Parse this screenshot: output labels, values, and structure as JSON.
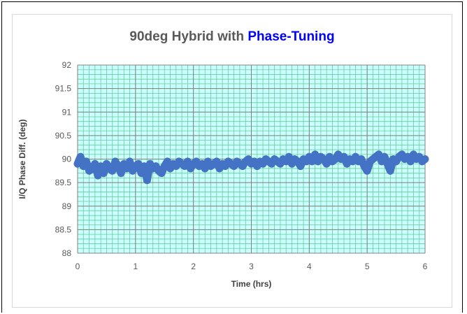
{
  "chart_data": {
    "type": "scatter",
    "title": "90deg Hybrid with ",
    "title_highlight": "Phase-Tuning",
    "xlabel": "Time (hrs)",
    "ylabel": "I/Q Phase Diff. (deg)",
    "xlim": [
      0,
      6
    ],
    "ylim": [
      88,
      92
    ],
    "x_ticks": [
      "0",
      "1",
      "2",
      "3",
      "4",
      "5",
      "6"
    ],
    "y_ticks": [
      "88",
      "88.5",
      "89",
      "89.5",
      "90",
      "90.5",
      "91",
      "91.5",
      "92"
    ],
    "grid": true,
    "legend": "none",
    "colors": {
      "plot_background": "#ccffff",
      "major_grid": "#808080",
      "minor_grid": "#66cc99",
      "series": "#4472c4",
      "title_accent": "#0000ff"
    },
    "series": [
      {
        "x": [
          0.0,
          0.05,
          0.1,
          0.15,
          0.2,
          0.25,
          0.3,
          0.35,
          0.4,
          0.45,
          0.5,
          0.55,
          0.6,
          0.65,
          0.7,
          0.75,
          0.8,
          0.85,
          0.9,
          0.95,
          1.0,
          1.05,
          1.1,
          1.15,
          1.2,
          1.25,
          1.3,
          1.35,
          1.4,
          1.45,
          1.5,
          1.55,
          1.6,
          1.65,
          1.7,
          1.75,
          1.8,
          1.85,
          1.9,
          1.95,
          2.0,
          2.05,
          2.1,
          2.15,
          2.2,
          2.25,
          2.3,
          2.35,
          2.4,
          2.45,
          2.5,
          2.55,
          2.6,
          2.65,
          2.7,
          2.75,
          2.8,
          2.85,
          2.9,
          2.95,
          3.0,
          3.05,
          3.1,
          3.15,
          3.2,
          3.25,
          3.3,
          3.35,
          3.4,
          3.45,
          3.5,
          3.55,
          3.6,
          3.65,
          3.7,
          3.75,
          3.8,
          3.85,
          3.9,
          3.95,
          4.0,
          4.05,
          4.1,
          4.15,
          4.2,
          4.25,
          4.3,
          4.35,
          4.4,
          4.45,
          4.5,
          4.55,
          4.6,
          4.65,
          4.7,
          4.75,
          4.8,
          4.85,
          4.9,
          4.95,
          5.0,
          5.05,
          5.1,
          5.15,
          5.2,
          5.25,
          5.3,
          5.35,
          5.4,
          5.45,
          5.5,
          5.55,
          5.6,
          5.65,
          5.7,
          5.75,
          5.8,
          5.85,
          5.9,
          5.95,
          6.0
        ],
        "y": [
          89.9,
          90.05,
          89.85,
          89.95,
          89.75,
          89.8,
          89.9,
          89.65,
          89.85,
          89.7,
          89.9,
          89.8,
          89.75,
          89.95,
          89.85,
          89.7,
          89.9,
          89.8,
          89.95,
          89.75,
          89.85,
          89.9,
          89.7,
          89.85,
          89.55,
          89.9,
          89.8,
          89.85,
          89.75,
          89.7,
          89.85,
          89.95,
          89.8,
          89.9,
          89.85,
          89.95,
          89.9,
          89.85,
          89.95,
          89.8,
          89.9,
          89.95,
          89.85,
          89.9,
          89.8,
          89.95,
          89.85,
          89.9,
          89.95,
          89.8,
          89.9,
          89.85,
          89.95,
          89.9,
          89.85,
          89.95,
          89.9,
          89.85,
          89.95,
          90.0,
          89.9,
          89.95,
          89.85,
          89.95,
          89.9,
          90.0,
          89.95,
          89.9,
          90.0,
          89.95,
          89.9,
          90.0,
          89.95,
          90.05,
          89.9,
          90.0,
          89.95,
          89.85,
          90.0,
          89.95,
          90.05,
          89.95,
          90.1,
          89.95,
          90.05,
          90.0,
          89.9,
          90.05,
          89.95,
          90.0,
          90.1,
          90.0,
          90.05,
          89.9,
          90.0,
          89.95,
          90.05,
          89.95,
          90.0,
          89.85,
          89.75,
          89.95,
          90.0,
          90.05,
          90.1,
          89.95,
          90.05,
          89.9,
          89.75,
          90.0,
          89.95,
          90.05,
          90.1,
          90.0,
          90.05,
          89.95,
          90.1,
          90.0,
          90.05,
          89.95,
          90.0
        ]
      }
    ]
  }
}
